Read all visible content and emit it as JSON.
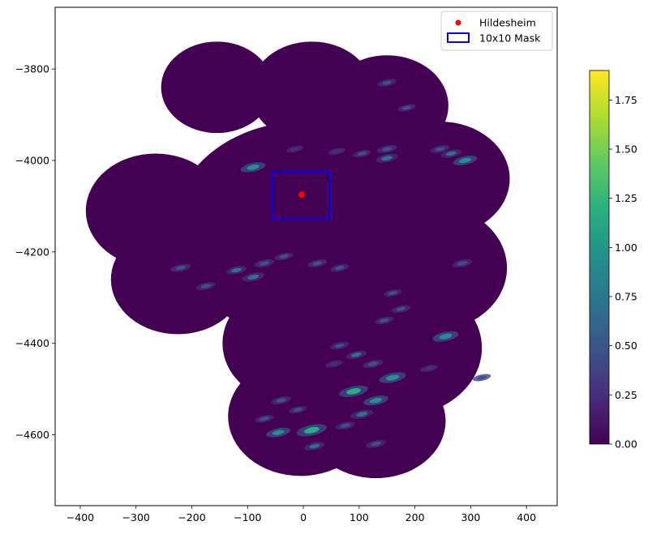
{
  "chart_data": {
    "type": "heatmap",
    "title": "",
    "xlabel": "",
    "ylabel": "",
    "xlim": [
      -445,
      455
    ],
    "ylim": [
      -4755,
      -3665
    ],
    "y_inverted": true,
    "x_ticks": [
      -400,
      -300,
      -200,
      -100,
      0,
      100,
      200,
      300,
      400
    ],
    "y_ticks": [
      -3800,
      -4000,
      -4200,
      -4400,
      -4600
    ],
    "x_tick_labels": [
      "−400",
      "−300",
      "−200",
      "−100",
      "0",
      "100",
      "200",
      "300",
      "400"
    ],
    "y_tick_labels": [
      "−3800",
      "−4000",
      "−4200",
      "−4400",
      "−4600"
    ],
    "grid": false,
    "colormap": "viridis",
    "colorbar": {
      "min": 0.0,
      "max": 1.9,
      "ticks": [
        0.0,
        0.25,
        0.5,
        0.75,
        1.0,
        1.25,
        1.5,
        1.75
      ],
      "tick_labels": [
        "0.00",
        "0.25",
        "0.50",
        "0.75",
        "1.00",
        "1.25",
        "1.50",
        "1.75"
      ]
    },
    "background_value": 0.0,
    "radar_coverage_circles": [
      {
        "cx": -155,
        "cy": -3840,
        "r": 100
      },
      {
        "cx": 15,
        "cy": -3850,
        "r": 110
      },
      {
        "cx": 150,
        "cy": -3880,
        "r": 110
      },
      {
        "cx": 245,
        "cy": -4040,
        "r": 125
      },
      {
        "cx": -265,
        "cy": -4110,
        "r": 125
      },
      {
        "cx": -225,
        "cy": -4260,
        "r": 120
      },
      {
        "cx": 225,
        "cy": -4235,
        "r": 140
      },
      {
        "cx": 170,
        "cy": -4410,
        "r": 150
      },
      {
        "cx": -10,
        "cy": -4400,
        "r": 135
      },
      {
        "cx": 130,
        "cy": -4570,
        "r": 125
      },
      {
        "cx": -5,
        "cy": -4560,
        "r": 130
      },
      {
        "cx": 0,
        "cy": -4150,
        "r": 235
      }
    ],
    "precipitation_patches": [
      {
        "x": -90,
        "y": -4015,
        "v": 0.9
      },
      {
        "x": 150,
        "y": -3830,
        "v": 0.45
      },
      {
        "x": 185,
        "y": -3885,
        "v": 0.4
      },
      {
        "x": 265,
        "y": -3985,
        "v": 0.6
      },
      {
        "x": 290,
        "y": -4000,
        "v": 0.85
      },
      {
        "x": 245,
        "y": -3975,
        "v": 0.5
      },
      {
        "x": 150,
        "y": -3975,
        "v": 0.55
      },
      {
        "x": 150,
        "y": -3995,
        "v": 0.7
      },
      {
        "x": 105,
        "y": -3985,
        "v": 0.4
      },
      {
        "x": 60,
        "y": -3980,
        "v": 0.35
      },
      {
        "x": -15,
        "y": -3975,
        "v": 0.3
      },
      {
        "x": -220,
        "y": -4235,
        "v": 0.55
      },
      {
        "x": -175,
        "y": -4275,
        "v": 0.5
      },
      {
        "x": -120,
        "y": -4240,
        "v": 0.6
      },
      {
        "x": -90,
        "y": -4255,
        "v": 0.75
      },
      {
        "x": -70,
        "y": -4225,
        "v": 0.55
      },
      {
        "x": -35,
        "y": -4210,
        "v": 0.45
      },
      {
        "x": 25,
        "y": -4225,
        "v": 0.5
      },
      {
        "x": 65,
        "y": -4235,
        "v": 0.45
      },
      {
        "x": 160,
        "y": -4290,
        "v": 0.4
      },
      {
        "x": 175,
        "y": -4325,
        "v": 0.5
      },
      {
        "x": 145,
        "y": -4350,
        "v": 0.45
      },
      {
        "x": 255,
        "y": -4385,
        "v": 1.0
      },
      {
        "x": 285,
        "y": -4225,
        "v": 0.55
      },
      {
        "x": 65,
        "y": -4405,
        "v": 0.45
      },
      {
        "x": 95,
        "y": -4425,
        "v": 0.6
      },
      {
        "x": 125,
        "y": -4445,
        "v": 0.55
      },
      {
        "x": 55,
        "y": -4445,
        "v": 0.35
      },
      {
        "x": 160,
        "y": -4475,
        "v": 1.05
      },
      {
        "x": 90,
        "y": -4505,
        "v": 1.2
      },
      {
        "x": 130,
        "y": -4525,
        "v": 0.9
      },
      {
        "x": 105,
        "y": -4555,
        "v": 0.75
      },
      {
        "x": -40,
        "y": -4525,
        "v": 0.55
      },
      {
        "x": -45,
        "y": -4595,
        "v": 0.85
      },
      {
        "x": 15,
        "y": -4590,
        "v": 1.3
      },
      {
        "x": 20,
        "y": -4625,
        "v": 0.6
      },
      {
        "x": 75,
        "y": -4580,
        "v": 0.5
      },
      {
        "x": -70,
        "y": -4565,
        "v": 0.45
      },
      {
        "x": 130,
        "y": -4620,
        "v": 0.55
      },
      {
        "x": -10,
        "y": -4545,
        "v": 0.4
      },
      {
        "x": 320,
        "y": -4475,
        "v": 0.4
      },
      {
        "x": 225,
        "y": -4455,
        "v": 0.35
      }
    ],
    "points": [
      {
        "name": "Hildesheim",
        "x": -3,
        "y": -4075,
        "color": "#ff0000"
      }
    ],
    "mask": {
      "name": "10x10 Mask",
      "x0": -55,
      "x1": 48,
      "y0": -4128,
      "y1": -4025,
      "color": "#0000ff"
    },
    "legend": {
      "position": "top-right",
      "entries": [
        "Hildesheim",
        "10x10 Mask"
      ]
    }
  }
}
